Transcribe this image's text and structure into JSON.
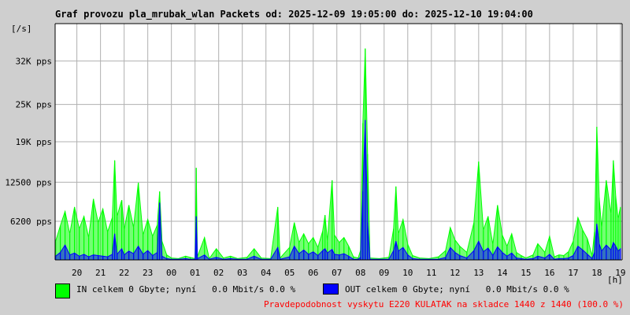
{
  "title": "Graf provozu pla_mrubak_wlan Packets od: 2025-12-09 19:05:00 do: 2025-12-10 19:04:00",
  "y_unit_label": "[/s]",
  "x_unit_label": "[h]",
  "colors": {
    "in": "#00ff00",
    "out": "#0000ff",
    "grid": "#b0b0b0",
    "note": "#ff0000"
  },
  "legend": {
    "in": "IN celkem 0 Gbyte; nyní   0.0 Mbit/s 0.0 %",
    "out": "OUT celkem 0 Gbyte; nyní   0.0 Mbit/s 0.0 %"
  },
  "footer_note": "Pravdepodobnost vyskytu E220 KULATAK na skladce 1440 z 1440 (100.0 %)",
  "chart_data": {
    "type": "area",
    "x_ticks": [
      "20",
      "21",
      "22",
      "23",
      "00",
      "01",
      "02",
      "03",
      "04",
      "05",
      "06",
      "07",
      "08",
      "09",
      "10",
      "11",
      "12",
      "13",
      "14",
      "15",
      "16",
      "17",
      "18",
      "19"
    ],
    "y_tick_labels": [
      "6200 pps",
      "12500 pps",
      "19K pps",
      "25K pps",
      "32K pps"
    ],
    "y_tick_values": [
      6200,
      12500,
      19000,
      25000,
      32000
    ],
    "ylim": [
      0,
      38000
    ],
    "x_range_hours": [
      19.08,
      43.07
    ],
    "grid": true,
    "series": [
      {
        "name": "IN",
        "points": [
          [
            19.1,
            3000
          ],
          [
            19.3,
            5500
          ],
          [
            19.5,
            7800
          ],
          [
            19.7,
            4200
          ],
          [
            19.9,
            8500
          ],
          [
            20.1,
            5000
          ],
          [
            20.3,
            7000
          ],
          [
            20.5,
            3600
          ],
          [
            20.7,
            9800
          ],
          [
            20.9,
            6000
          ],
          [
            21.1,
            8200
          ],
          [
            21.3,
            4500
          ],
          [
            21.5,
            6800
          ],
          [
            21.6,
            16000
          ],
          [
            21.7,
            7000
          ],
          [
            21.9,
            9600
          ],
          [
            22.0,
            4800
          ],
          [
            22.2,
            8800
          ],
          [
            22.4,
            5200
          ],
          [
            22.6,
            12400
          ],
          [
            22.8,
            4000
          ],
          [
            23.0,
            6500
          ],
          [
            23.2,
            3800
          ],
          [
            23.4,
            5600
          ],
          [
            23.5,
            11000
          ],
          [
            23.6,
            3000
          ],
          [
            23.8,
            800
          ],
          [
            24.0,
            300
          ],
          [
            24.3,
            200
          ],
          [
            24.6,
            600
          ],
          [
            24.8,
            400
          ],
          [
            25.0,
            200
          ],
          [
            25.05,
            14800
          ],
          [
            25.1,
            500
          ],
          [
            25.4,
            3600
          ],
          [
            25.6,
            200
          ],
          [
            25.9,
            1800
          ],
          [
            26.2,
            300
          ],
          [
            26.5,
            600
          ],
          [
            26.8,
            200
          ],
          [
            27.2,
            400
          ],
          [
            27.5,
            1800
          ],
          [
            27.8,
            300
          ],
          [
            28.2,
            200
          ],
          [
            28.5,
            8500
          ],
          [
            28.6,
            300
          ],
          [
            29.0,
            2000
          ],
          [
            29.2,
            6000
          ],
          [
            29.4,
            2800
          ],
          [
            29.6,
            4200
          ],
          [
            29.8,
            2600
          ],
          [
            30.0,
            3600
          ],
          [
            30.2,
            2000
          ],
          [
            30.4,
            4600
          ],
          [
            30.5,
            7200
          ],
          [
            30.6,
            3000
          ],
          [
            30.8,
            12800
          ],
          [
            30.9,
            4000
          ],
          [
            31.1,
            2800
          ],
          [
            31.3,
            3600
          ],
          [
            31.5,
            2200
          ],
          [
            31.7,
            500
          ],
          [
            31.9,
            300
          ],
          [
            32.0,
            1500
          ],
          [
            32.1,
            22000
          ],
          [
            32.2,
            34000
          ],
          [
            32.3,
            17000
          ],
          [
            32.4,
            300
          ],
          [
            32.8,
            200
          ],
          [
            33.2,
            400
          ],
          [
            33.4,
            5000
          ],
          [
            33.5,
            11800
          ],
          [
            33.6,
            4200
          ],
          [
            33.8,
            6500
          ],
          [
            34.0,
            2500
          ],
          [
            34.2,
            700
          ],
          [
            34.5,
            300
          ],
          [
            34.9,
            200
          ],
          [
            35.3,
            500
          ],
          [
            35.6,
            1500
          ],
          [
            35.8,
            5200
          ],
          [
            36.0,
            3200
          ],
          [
            36.2,
            2200
          ],
          [
            36.5,
            1200
          ],
          [
            36.8,
            6000
          ],
          [
            37.0,
            15800
          ],
          [
            37.2,
            4800
          ],
          [
            37.4,
            7000
          ],
          [
            37.6,
            2500
          ],
          [
            37.8,
            8800
          ],
          [
            38.0,
            4000
          ],
          [
            38.2,
            2200
          ],
          [
            38.4,
            4200
          ],
          [
            38.6,
            1200
          ],
          [
            38.8,
            700
          ],
          [
            39.0,
            300
          ],
          [
            39.3,
            800
          ],
          [
            39.5,
            2600
          ],
          [
            39.8,
            1200
          ],
          [
            40.0,
            3800
          ],
          [
            40.2,
            500
          ],
          [
            40.4,
            800
          ],
          [
            40.6,
            700
          ],
          [
            40.8,
            1300
          ],
          [
            41.0,
            3000
          ],
          [
            41.2,
            6800
          ],
          [
            41.4,
            4800
          ],
          [
            41.6,
            3400
          ],
          [
            41.8,
            700
          ],
          [
            41.9,
            4500
          ],
          [
            42.0,
            21400
          ],
          [
            42.1,
            10000
          ],
          [
            42.2,
            5200
          ],
          [
            42.4,
            12800
          ],
          [
            42.6,
            7400
          ],
          [
            42.7,
            16000
          ],
          [
            42.8,
            10200
          ],
          [
            42.9,
            6600
          ],
          [
            43.0,
            8500
          ]
        ]
      },
      {
        "name": "OUT",
        "points": [
          [
            19.1,
            600
          ],
          [
            19.3,
            1200
          ],
          [
            19.5,
            2400
          ],
          [
            19.7,
            800
          ],
          [
            19.9,
            1100
          ],
          [
            20.1,
            600
          ],
          [
            20.3,
            900
          ],
          [
            20.5,
            500
          ],
          [
            20.7,
            800
          ],
          [
            20.9,
            700
          ],
          [
            21.1,
            600
          ],
          [
            21.3,
            500
          ],
          [
            21.5,
            900
          ],
          [
            21.6,
            4200
          ],
          [
            21.7,
            900
          ],
          [
            21.9,
            1800
          ],
          [
            22.0,
            800
          ],
          [
            22.2,
            1400
          ],
          [
            22.4,
            1000
          ],
          [
            22.6,
            2200
          ],
          [
            22.8,
            900
          ],
          [
            23.0,
            1500
          ],
          [
            23.2,
            700
          ],
          [
            23.4,
            1200
          ],
          [
            23.5,
            9200
          ],
          [
            23.6,
            600
          ],
          [
            23.8,
            200
          ],
          [
            24.0,
            100
          ],
          [
            24.3,
            100
          ],
          [
            24.6,
            200
          ],
          [
            24.8,
            100
          ],
          [
            25.0,
            100
          ],
          [
            25.05,
            7000
          ],
          [
            25.1,
            200
          ],
          [
            25.4,
            800
          ],
          [
            25.6,
            100
          ],
          [
            25.9,
            400
          ],
          [
            26.2,
            100
          ],
          [
            26.5,
            200
          ],
          [
            26.8,
            100
          ],
          [
            27.2,
            100
          ],
          [
            27.5,
            600
          ],
          [
            27.8,
            100
          ],
          [
            28.2,
            100
          ],
          [
            28.5,
            2000
          ],
          [
            28.6,
            100
          ],
          [
            29.0,
            500
          ],
          [
            29.2,
            2200
          ],
          [
            29.4,
            1000
          ],
          [
            29.6,
            1600
          ],
          [
            29.8,
            900
          ],
          [
            30.0,
            1300
          ],
          [
            30.2,
            700
          ],
          [
            30.4,
            1500
          ],
          [
            30.5,
            1800
          ],
          [
            30.6,
            1100
          ],
          [
            30.8,
            1700
          ],
          [
            30.9,
            900
          ],
          [
            31.1,
            800
          ],
          [
            31.3,
            1000
          ],
          [
            31.5,
            600
          ],
          [
            31.7,
            100
          ],
          [
            31.9,
            100
          ],
          [
            32.0,
            400
          ],
          [
            32.1,
            11000
          ],
          [
            32.2,
            22500
          ],
          [
            32.3,
            6000
          ],
          [
            32.4,
            100
          ],
          [
            32.8,
            100
          ],
          [
            33.2,
            100
          ],
          [
            33.4,
            1500
          ],
          [
            33.5,
            3000
          ],
          [
            33.6,
            1400
          ],
          [
            33.8,
            2000
          ],
          [
            34.0,
            800
          ],
          [
            34.2,
            200
          ],
          [
            34.5,
            100
          ],
          [
            34.9,
            100
          ],
          [
            35.3,
            100
          ],
          [
            35.6,
            400
          ],
          [
            35.8,
            2000
          ],
          [
            36.0,
            1200
          ],
          [
            36.2,
            700
          ],
          [
            36.5,
            300
          ],
          [
            36.8,
            1500
          ],
          [
            37.0,
            3000
          ],
          [
            37.2,
            1300
          ],
          [
            37.4,
            1900
          ],
          [
            37.6,
            700
          ],
          [
            37.8,
            2100
          ],
          [
            38.0,
            1200
          ],
          [
            38.2,
            600
          ],
          [
            38.4,
            1100
          ],
          [
            38.6,
            300
          ],
          [
            38.8,
            200
          ],
          [
            39.0,
            100
          ],
          [
            39.3,
            200
          ],
          [
            39.5,
            600
          ],
          [
            39.8,
            300
          ],
          [
            40.0,
            900
          ],
          [
            40.2,
            100
          ],
          [
            40.4,
            200
          ],
          [
            40.6,
            200
          ],
          [
            40.8,
            300
          ],
          [
            41.0,
            700
          ],
          [
            41.2,
            2200
          ],
          [
            41.4,
            1600
          ],
          [
            41.6,
            900
          ],
          [
            41.8,
            200
          ],
          [
            41.9,
            1200
          ],
          [
            42.0,
            5800
          ],
          [
            42.1,
            2600
          ],
          [
            42.2,
            1400
          ],
          [
            42.4,
            2400
          ],
          [
            42.6,
            1600
          ],
          [
            42.7,
            2800
          ],
          [
            42.8,
            2200
          ],
          [
            42.9,
            1400
          ],
          [
            43.0,
            1800
          ]
        ]
      }
    ]
  }
}
